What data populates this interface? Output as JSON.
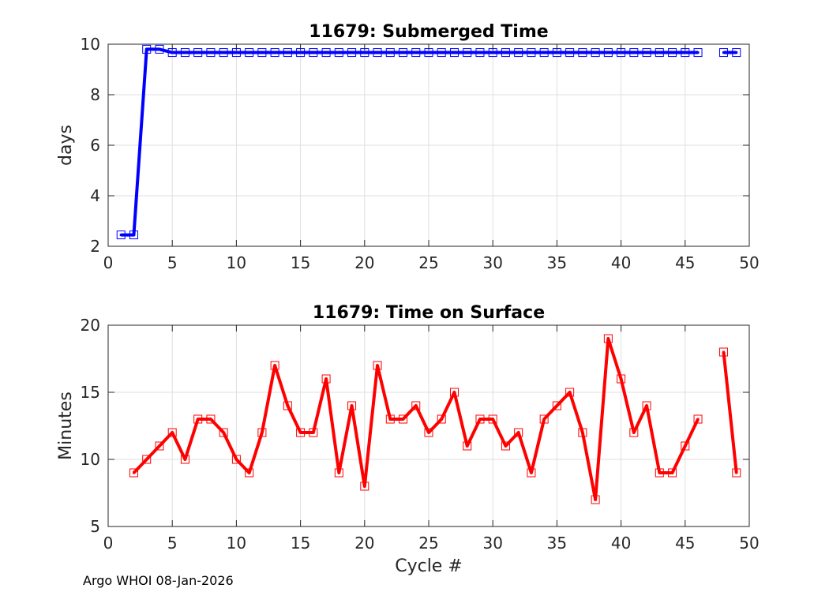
{
  "footer": "Argo WHOI 08-Jan-2026",
  "chart_data": [
    {
      "type": "line",
      "title": "11679: Submerged Time",
      "xlabel": "",
      "ylabel": "days",
      "xlim": [
        0,
        50
      ],
      "ylim": [
        2,
        10
      ],
      "xticks": [
        0,
        5,
        10,
        15,
        20,
        25,
        30,
        35,
        40,
        45,
        50
      ],
      "yticks": [
        2,
        4,
        6,
        8,
        10
      ],
      "grid": true,
      "color": "#0000ff",
      "marker": "square",
      "series": [
        {
          "x": [
            1,
            2,
            3,
            4,
            5,
            6,
            7,
            8,
            9,
            10,
            11,
            12,
            13,
            14,
            15,
            16,
            17,
            18,
            19,
            20,
            21,
            22,
            23,
            24,
            25,
            26,
            27,
            28,
            29,
            30,
            31,
            32,
            33,
            34,
            35,
            36,
            37,
            38,
            39,
            40,
            41,
            42,
            43,
            44,
            45,
            46,
            null,
            48,
            49
          ],
          "values": [
            2.45,
            2.45,
            9.8,
            9.8,
            9.67,
            9.67,
            9.67,
            9.67,
            9.67,
            9.67,
            9.67,
            9.67,
            9.67,
            9.67,
            9.67,
            9.67,
            9.67,
            9.67,
            9.67,
            9.67,
            9.67,
            9.67,
            9.67,
            9.67,
            9.67,
            9.67,
            9.67,
            9.67,
            9.67,
            9.67,
            9.67,
            9.67,
            9.67,
            9.67,
            9.67,
            9.67,
            9.67,
            9.67,
            9.67,
            9.67,
            9.67,
            9.67,
            9.67,
            9.67,
            9.67,
            9.67,
            null,
            9.67,
            9.67
          ]
        }
      ]
    },
    {
      "type": "line",
      "title": "11679: Time on Surface",
      "xlabel": "Cycle #",
      "ylabel": "Minutes",
      "xlim": [
        0,
        50
      ],
      "ylim": [
        5,
        20
      ],
      "xticks": [
        0,
        5,
        10,
        15,
        20,
        25,
        30,
        35,
        40,
        45,
        50
      ],
      "yticks": [
        5,
        10,
        15,
        20
      ],
      "grid": true,
      "color": "#ff0000",
      "marker": "square",
      "series": [
        {
          "x": [
            2,
            3,
            4,
            5,
            6,
            7,
            8,
            9,
            10,
            11,
            12,
            13,
            14,
            15,
            16,
            17,
            18,
            19,
            20,
            21,
            22,
            23,
            24,
            25,
            26,
            27,
            28,
            29,
            30,
            31,
            32,
            33,
            34,
            35,
            36,
            37,
            38,
            39,
            40,
            41,
            42,
            43,
            44,
            45,
            46,
            null,
            48,
            49
          ],
          "values": [
            9,
            10,
            11,
            12,
            10,
            13,
            13,
            12,
            10,
            9,
            12,
            17,
            14,
            12,
            12,
            16,
            9,
            14,
            8,
            17,
            13,
            13,
            14,
            12,
            13,
            15,
            11,
            13,
            13,
            11,
            12,
            9,
            13,
            14,
            15,
            12,
            7,
            19,
            16,
            12,
            14,
            9,
            9,
            11,
            13,
            null,
            18,
            9
          ]
        }
      ]
    }
  ]
}
